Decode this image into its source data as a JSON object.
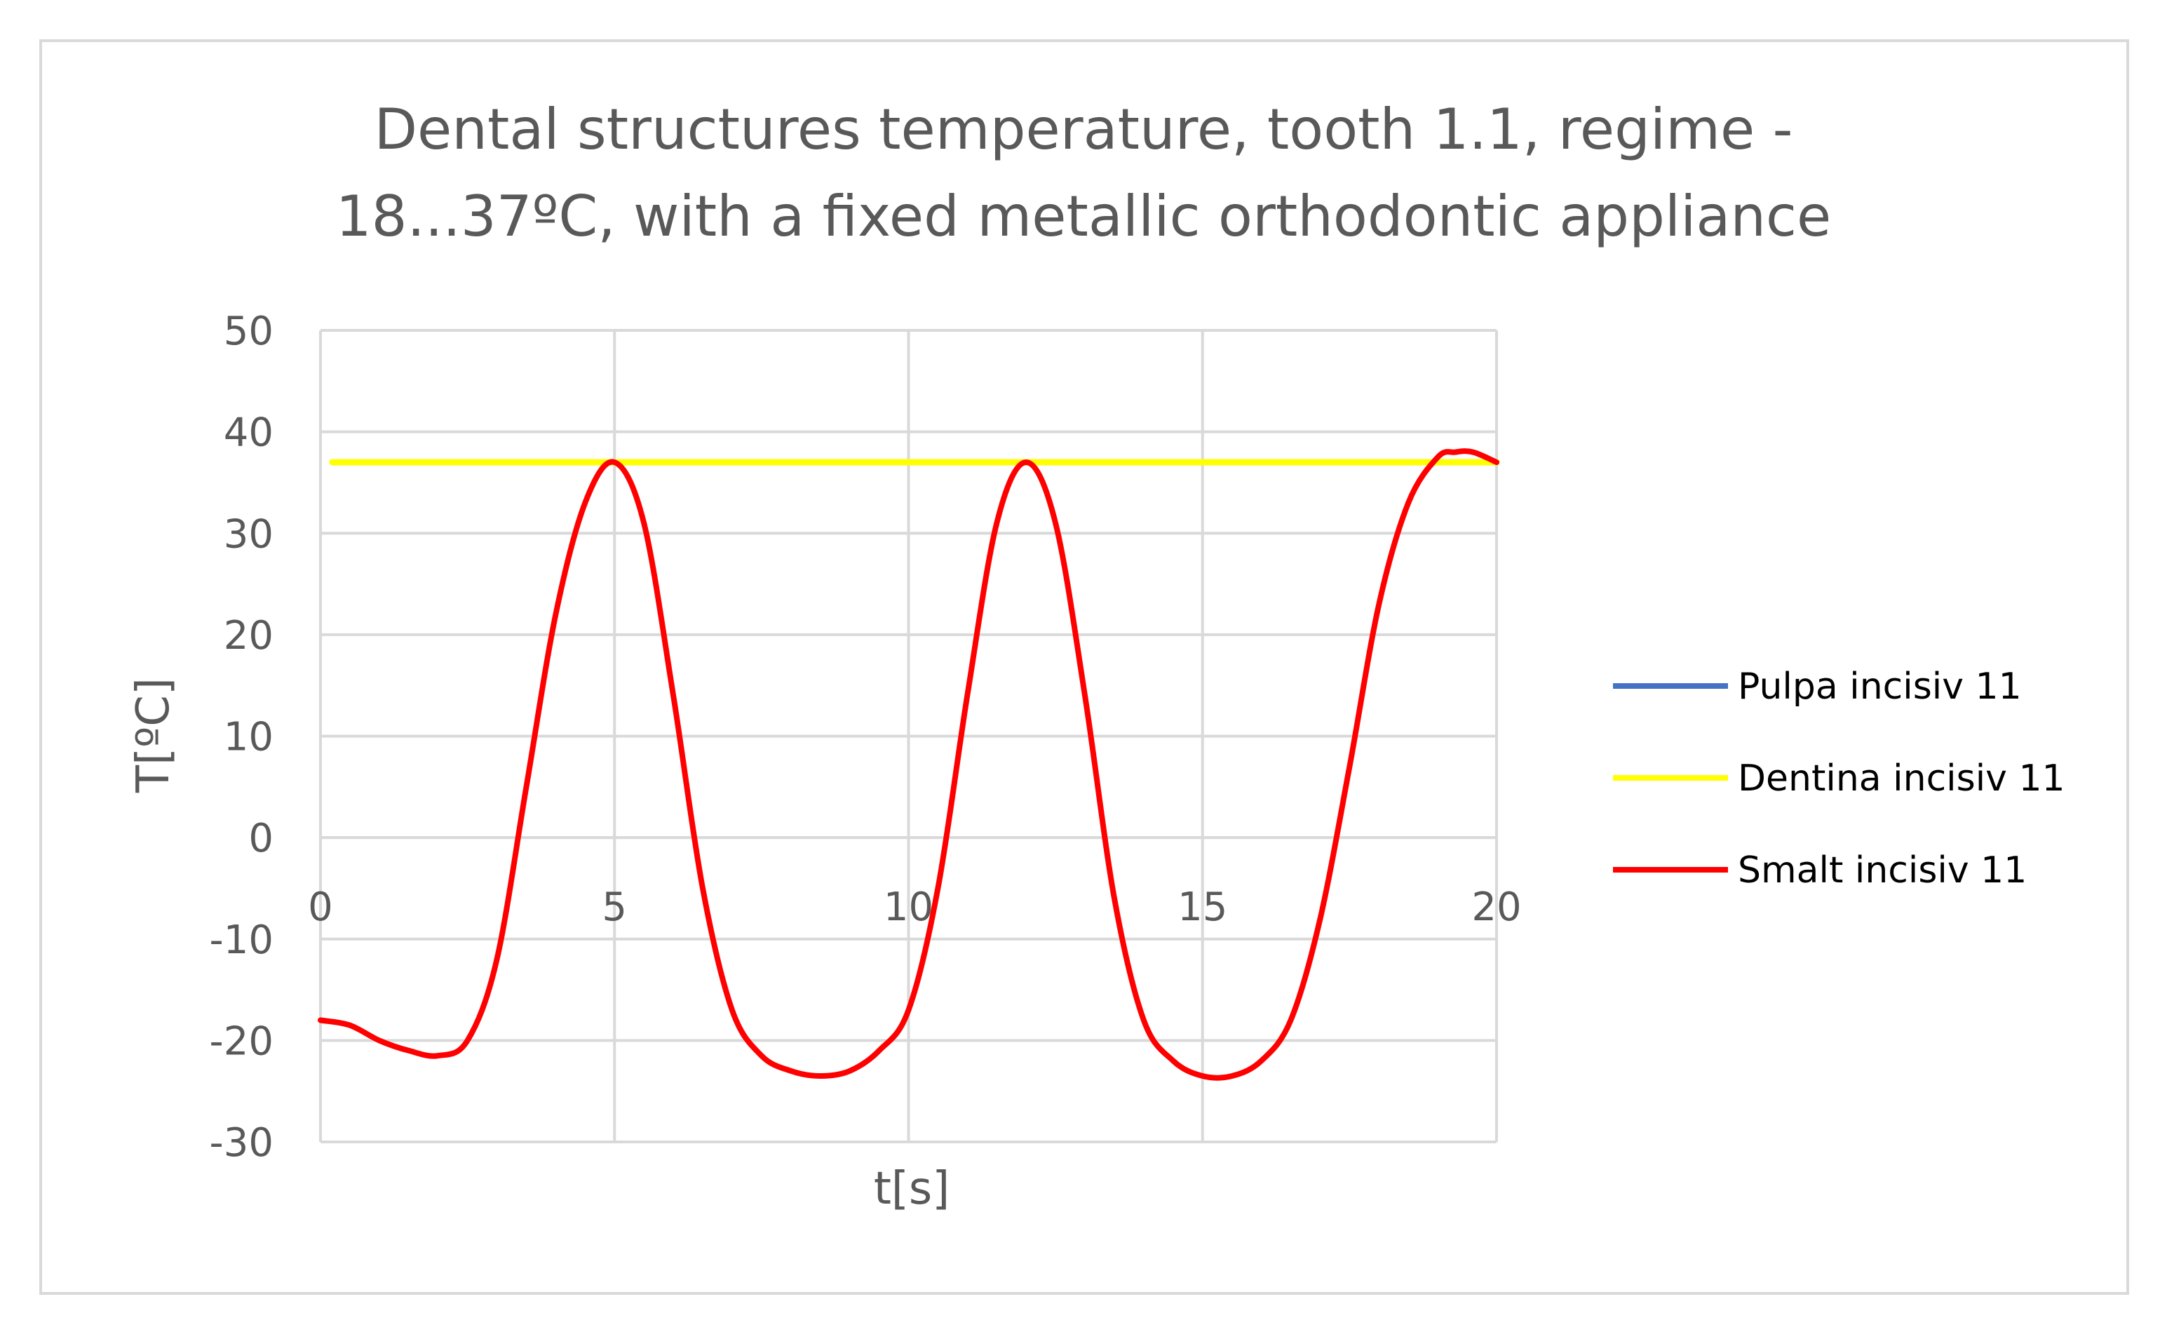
{
  "chart_data": {
    "type": "line",
    "title": "Dental structures temperature, tooth 1.1, regime -18...37ºC, with a fixed metallic orthodontic appliance",
    "title_lines": [
      "Dental structures temperature, tooth 1.1, regime -",
      "18...37ºC, with a fixed metallic orthodontic appliance"
    ],
    "xlabel": "t[s]",
    "ylabel": "T[ºC]",
    "xlim": [
      0,
      20
    ],
    "ylim": [
      -30,
      50
    ],
    "x_ticks": [
      0,
      5,
      10,
      15,
      20
    ],
    "y_ticks": [
      50,
      40,
      30,
      20,
      10,
      0,
      -10,
      -20,
      -30
    ],
    "grid": true,
    "legend_position": "right",
    "series": [
      {
        "name": "Pulpa incisiv 11",
        "color": "#4472c4",
        "x": [
          0.2,
          20
        ],
        "y": [
          37,
          37
        ]
      },
      {
        "name": "Dentina incisiv 11",
        "color": "#ffff00",
        "x": [
          0.2,
          5,
          10,
          15,
          19,
          20
        ],
        "y": [
          37,
          37,
          37,
          37,
          37,
          37
        ]
      },
      {
        "name": "Smalt incisiv 11",
        "color": "#ff0000",
        "x": [
          0,
          0.5,
          1,
          1.5,
          2,
          2.5,
          3,
          3.5,
          4,
          4.5,
          5,
          5.5,
          6,
          6.5,
          7,
          7.5,
          8,
          8.5,
          9,
          9.5,
          10,
          10.5,
          11,
          11.5,
          12,
          12.5,
          13,
          13.5,
          14,
          14.5,
          15,
          15.5,
          16,
          16.5,
          17,
          17.5,
          18,
          18.5,
          19,
          19.3,
          19.6,
          20
        ],
        "y": [
          -18,
          -18.5,
          -20,
          -21,
          -21.5,
          -20,
          -12,
          5,
          22,
          33,
          37,
          31,
          14,
          -5,
          -17,
          -21.5,
          -23,
          -23.5,
          -23,
          -21,
          -17,
          -5,
          14,
          31,
          37,
          31,
          14,
          -6,
          -18,
          -22,
          -23.5,
          -23.5,
          -22,
          -18,
          -8,
          7,
          23,
          33,
          37.5,
          38,
          38,
          37
        ]
      }
    ]
  }
}
